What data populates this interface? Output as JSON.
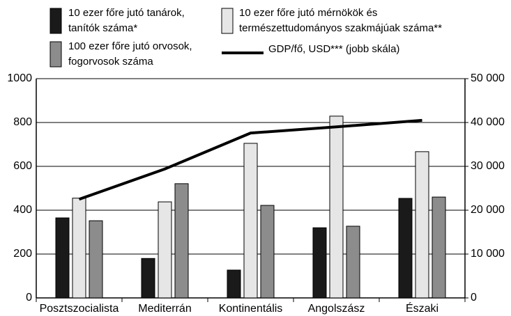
{
  "chart_data": {
    "type": "bar",
    "categories": [
      "Posztszocialista",
      "Mediterrán",
      "Kontinentális",
      "Angolszász",
      "Északi"
    ],
    "series": [
      {
        "name": "10 ezer főre jutó tanárok, tanítók száma*",
        "color": "#1a1a1a",
        "values": [
          365,
          180,
          127,
          320,
          454
        ]
      },
      {
        "name": "10 ezer főre jutó mérnökök és természettudományos szakmájúak száma**",
        "color": "#e6e6e6",
        "values": [
          455,
          438,
          705,
          829,
          667
        ]
      },
      {
        "name": "100 ezer főre jutó orvosok, fogorvosok száma",
        "color": "#8c8c8c",
        "values": [
          352,
          521,
          422,
          327,
          460
        ]
      },
      {
        "name": "GDP/fő, USD*** (jobb skála)",
        "color": "#000000",
        "type": "line",
        "axis": "y2",
        "values": [
          22500,
          29400,
          37600,
          39000,
          40500
        ]
      }
    ],
    "ylim": [
      0,
      1000
    ],
    "yticks": [
      0,
      200,
      400,
      600,
      800,
      1000
    ],
    "y2lim": [
      0,
      50000
    ],
    "y2ticks": [
      0,
      {
        "value": 10000,
        "label": "10 000"
      },
      {
        "value": 20000,
        "label": "20 000"
      },
      {
        "value": 30000,
        "label": "30 000"
      },
      {
        "value": 40000,
        "label": "40 000"
      },
      {
        "value": 50000,
        "label": "50 000"
      }
    ],
    "grid": true
  }
}
